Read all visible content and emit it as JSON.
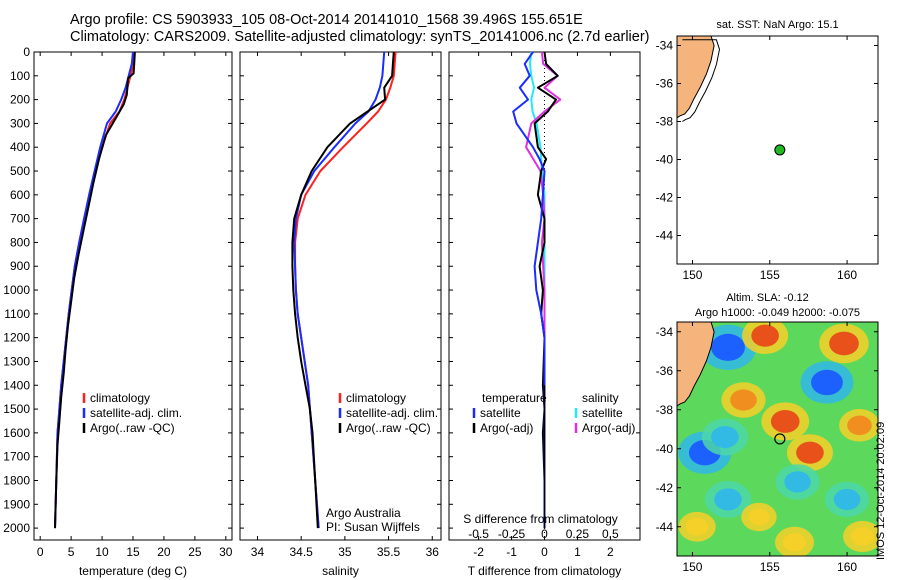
{
  "header": {
    "line1": "Argo profile: CS 5903933_105 08-Oct-2014 20141010_1568 39.496S 155.651E",
    "line2": "Climatology: CARS2009. Satellite-adjusted climatology: synTS_20141006.nc (2.7d earlier)"
  },
  "footer_stamp": "IMOS 12-Oct-2014 20:02:09",
  "colors": {
    "climatology": "#ff2020",
    "satellite": "#1a2cff",
    "argo": "#000000",
    "s_satellite": "#22e8ff",
    "s_argo": "#e030e0",
    "land": "#f4b47c",
    "float_marker": "#22b822"
  },
  "chart_data": [
    {
      "type": "line",
      "panel": "temperature",
      "xlabel": "temperature (deg C)",
      "ylabel": "",
      "xlim": [
        -1,
        31
      ],
      "ylim": [
        0,
        2050
      ],
      "y_inverted": true,
      "x_ticks": [
        "0",
        "5",
        "10",
        "15",
        "20",
        "25",
        "30"
      ],
      "y_ticks": [
        "0",
        "100",
        "200",
        "300",
        "400",
        "500",
        "600",
        "700",
        "800",
        "900",
        "1000",
        "1100",
        "1200",
        "1300",
        "1400",
        "1500",
        "1600",
        "1700",
        "1800",
        "1900",
        "2000"
      ],
      "legend": {
        "position": "lower-center",
        "entries": [
          "climatology",
          "satellite-adj. clim.",
          "Argo(..raw -QC)"
        ]
      },
      "series": [
        {
          "name": "climatology",
          "color_key": "climatology",
          "x": [
            15.2,
            15.1,
            14.6,
            14.1,
            13.6,
            12.8,
            11.3,
            10.0,
            8.9,
            8.0,
            7.1,
            6.3,
            5.6,
            5.1,
            4.6,
            4.2,
            3.8,
            3.4,
            3.1,
            2.8,
            2.6,
            2.4
          ],
          "y": [
            0,
            50,
            100,
            150,
            200,
            250,
            300,
            400,
            500,
            600,
            700,
            800,
            900,
            1000,
            1100,
            1200,
            1300,
            1400,
            1500,
            1600,
            1800,
            2000
          ]
        },
        {
          "name": "satellite-adj. clim.",
          "color_key": "satellite",
          "x": [
            15.0,
            14.8,
            14.3,
            13.8,
            13.1,
            12.2,
            10.8,
            9.7,
            8.8,
            7.9,
            7.1,
            6.3,
            5.6,
            5.1,
            4.6,
            4.2,
            3.8,
            3.4,
            3.1,
            2.8,
            2.6,
            2.4
          ],
          "y": [
            0,
            50,
            100,
            150,
            200,
            250,
            300,
            400,
            500,
            600,
            700,
            800,
            900,
            1000,
            1100,
            1200,
            1300,
            1400,
            1500,
            1600,
            1800,
            2000
          ]
        },
        {
          "name": "Argo(..raw -QC)",
          "color_key": "argo",
          "x": [
            15.3,
            15.2,
            15.1,
            14.2,
            14.0,
            13.5,
            12.4,
            10.6,
            9.5,
            8.6,
            7.8,
            7.0,
            6.2,
            5.5,
            5.0,
            4.5,
            4.1,
            3.8,
            3.4,
            3.1,
            2.8,
            2.6,
            2.4
          ],
          "y": [
            0,
            50,
            90,
            110,
            180,
            220,
            270,
            350,
            450,
            550,
            650,
            750,
            850,
            950,
            1050,
            1150,
            1250,
            1350,
            1450,
            1550,
            1650,
            1800,
            2000
          ]
        }
      ]
    },
    {
      "type": "line",
      "panel": "salinity",
      "xlabel": "salinity",
      "xlim": [
        33.8,
        36.1
      ],
      "ylim": [
        0,
        2050
      ],
      "y_inverted": true,
      "x_ticks": [
        "34",
        "34.5",
        "35",
        "35.5",
        "36"
      ],
      "legend": {
        "position": "lower-center",
        "entries": [
          "climatology",
          "satellite-adj. clim.",
          "Argo(..raw -QC)"
        ]
      },
      "annotation": [
        "Argo Australia",
        "PI: Susan Wijffels"
      ],
      "series": [
        {
          "name": "climatology",
          "color_key": "climatology",
          "x": [
            35.58,
            35.57,
            35.56,
            35.52,
            35.47,
            35.38,
            35.25,
            34.98,
            34.72,
            34.55,
            34.46,
            34.43,
            34.43,
            34.44,
            34.46,
            34.5,
            34.54,
            34.58,
            34.62,
            34.66,
            34.7
          ],
          "y": [
            0,
            50,
            100,
            150,
            200,
            250,
            300,
            400,
            500,
            600,
            700,
            800,
            900,
            1000,
            1100,
            1200,
            1300,
            1400,
            1600,
            1800,
            2000
          ]
        },
        {
          "name": "satellite-adj. clim.",
          "color_key": "satellite",
          "x": [
            35.45,
            35.44,
            35.43,
            35.4,
            35.35,
            35.27,
            35.12,
            34.88,
            34.65,
            34.5,
            34.44,
            34.42,
            34.43,
            34.44,
            34.46,
            34.5,
            34.54,
            34.58,
            34.62,
            34.66,
            34.7
          ],
          "y": [
            0,
            50,
            100,
            150,
            200,
            250,
            300,
            400,
            500,
            600,
            700,
            800,
            900,
            1000,
            1100,
            1200,
            1300,
            1400,
            1600,
            1800,
            2000
          ]
        },
        {
          "name": "Argo(..raw -QC)",
          "color_key": "argo",
          "x": [
            35.56,
            35.55,
            35.54,
            35.45,
            35.46,
            35.26,
            35.06,
            34.8,
            34.62,
            34.5,
            34.42,
            34.4,
            34.4,
            34.41,
            34.43,
            34.46,
            34.5,
            34.55,
            34.6,
            34.63,
            34.66,
            34.69
          ],
          "y": [
            0,
            50,
            100,
            150,
            200,
            250,
            300,
            400,
            500,
            600,
            700,
            800,
            900,
            1000,
            1100,
            1200,
            1300,
            1400,
            1500,
            1600,
            1800,
            2000
          ]
        }
      ]
    },
    {
      "type": "line",
      "panel": "differences",
      "xlabel": "T difference from climatology",
      "xlabel_top": "S difference from climatology",
      "xlim": [
        -2.9,
        2.9
      ],
      "ylim": [
        0,
        2050
      ],
      "y_inverted": true,
      "x_ticks": [
        "-2",
        "-1",
        "0",
        "1",
        "2"
      ],
      "x_ticks_top": [
        "-0.5",
        "-0.25",
        "0",
        "0.25",
        "0.5"
      ],
      "legend": {
        "position": "lower-center",
        "headers": [
          "temperature",
          "salinity"
        ],
        "entries": [
          "satellite",
          "Argo(-adj)",
          "satellite",
          "Argo(-adj)"
        ]
      },
      "series": [
        {
          "name": "T satellite",
          "color_key": "satellite",
          "x": [
            -0.35,
            -0.6,
            -0.45,
            -0.75,
            -0.5,
            -0.95,
            -0.85,
            -0.35,
            -0.15,
            0.0,
            -0.05,
            -0.1,
            -0.2,
            -0.3,
            -0.25,
            -0.1,
            0.0,
            0.0,
            0.0,
            0.0,
            0.0
          ],
          "y": [
            0,
            50,
            100,
            150,
            200,
            250,
            300,
            400,
            450,
            500,
            600,
            700,
            800,
            900,
            1000,
            1100,
            1200,
            1400,
            1600,
            1800,
            2000
          ]
        },
        {
          "name": "T Argo(-adj)",
          "color_key": "argo",
          "x": [
            0.0,
            0.05,
            0.4,
            -0.2,
            0.35,
            0.1,
            -0.3,
            -0.2,
            0.05,
            -0.1,
            -0.2,
            0.0,
            0.0,
            -0.15,
            -0.05,
            -0.1,
            0.0,
            -0.05,
            0.0,
            -0.05,
            0.0,
            0.0
          ],
          "y": [
            0,
            50,
            100,
            150,
            200,
            250,
            300,
            400,
            450,
            500,
            600,
            700,
            800,
            900,
            1000,
            1100,
            1200,
            1400,
            1500,
            1600,
            1800,
            2000
          ]
        },
        {
          "name": "S satellite",
          "color_key": "s_satellite",
          "x": [
            -0.1,
            -0.11,
            -0.1,
            -0.08,
            -0.1,
            -0.09,
            -0.06,
            -0.03,
            -0.02,
            0.0,
            0.0,
            0.0,
            0.0
          ],
          "y": [
            0,
            50,
            100,
            150,
            200,
            250,
            300,
            400,
            500,
            600,
            800,
            1200,
            2000
          ]
        },
        {
          "name": "S Argo(-adj)",
          "color_key": "s_argo",
          "x": [
            -0.02,
            -0.01,
            0.1,
            0.0,
            0.12,
            0.0,
            -0.1,
            -0.14,
            -0.03,
            -0.01,
            0.0,
            -0.02,
            0.0,
            0.0
          ],
          "y": [
            0,
            50,
            100,
            150,
            200,
            250,
            300,
            400,
            500,
            600,
            700,
            800,
            1000,
            2000
          ]
        },
        {
          "name": "S Argo detail",
          "color_key": "argo",
          "x": [
            0.0,
            0.0,
            0.0,
            0.0
          ],
          "y": [
            1400,
            1600,
            1800,
            2000
          ]
        }
      ]
    },
    {
      "type": "map",
      "panel": "sst-map",
      "title": "sat. SST: NaN Argo: 15.1",
      "xlim": [
        149,
        162
      ],
      "ylim": [
        -45.5,
        -33.5
      ],
      "x_ticks": [
        "150",
        "155",
        "160"
      ],
      "y_ticks": [
        "-34",
        "-36",
        "-38",
        "-40",
        "-42",
        "-44"
      ],
      "float_position": [
        155.651,
        -39.496
      ],
      "coast": {
        "lon": [
          149,
          151.2,
          151.4,
          151.2,
          150.9,
          150.5,
          150.1,
          149.8,
          149.5,
          149.2,
          149
        ],
        "lat": [
          -33.5,
          -33.5,
          -34.0,
          -34.8,
          -35.5,
          -36.2,
          -36.8,
          -37.3,
          -37.6,
          -37.7,
          -37.8
        ]
      }
    },
    {
      "type": "heatmap",
      "panel": "sla-map",
      "title_line1": "Altim. SLA: -0.12",
      "title_line2": "Argo h1000: -0.049 h2000: -0.075",
      "xlim": [
        149,
        162
      ],
      "ylim": [
        -45.5,
        -33.5
      ],
      "x_ticks": [
        "150",
        "155",
        "160"
      ],
      "y_ticks": [
        "-34",
        "-36",
        "-38",
        "-40",
        "-42",
        "-44"
      ],
      "float_position": [
        155.651,
        -39.496
      ],
      "blobs": [
        {
          "lon": 152.3,
          "lat": -34.8,
          "value": -0.9
        },
        {
          "lon": 154.7,
          "lat": -34.2,
          "value": 0.6
        },
        {
          "lon": 153.3,
          "lat": -37.5,
          "value": 0.55
        },
        {
          "lon": 150.8,
          "lat": -40.2,
          "value": -0.8
        },
        {
          "lon": 152.1,
          "lat": -39.4,
          "value": -0.6
        },
        {
          "lon": 156.0,
          "lat": -38.6,
          "value": 0.65
        },
        {
          "lon": 158.7,
          "lat": -36.6,
          "value": -0.8
        },
        {
          "lon": 159.8,
          "lat": -34.6,
          "value": 0.7
        },
        {
          "lon": 157.6,
          "lat": -40.2,
          "value": 0.6
        },
        {
          "lon": 160.8,
          "lat": -38.8,
          "value": 0.45
        },
        {
          "lon": 156.8,
          "lat": -41.7,
          "value": -0.55
        },
        {
          "lon": 152.3,
          "lat": -42.6,
          "value": -0.6
        },
        {
          "lon": 154.3,
          "lat": -43.5,
          "value": 0.3
        },
        {
          "lon": 160.0,
          "lat": -42.6,
          "value": -0.55
        },
        {
          "lon": 161.0,
          "lat": -44.5,
          "value": 0.4
        },
        {
          "lon": 156.6,
          "lat": -44.8,
          "value": 0.4
        },
        {
          "lon": 150.3,
          "lat": -44.0,
          "value": 0.35
        }
      ]
    }
  ]
}
